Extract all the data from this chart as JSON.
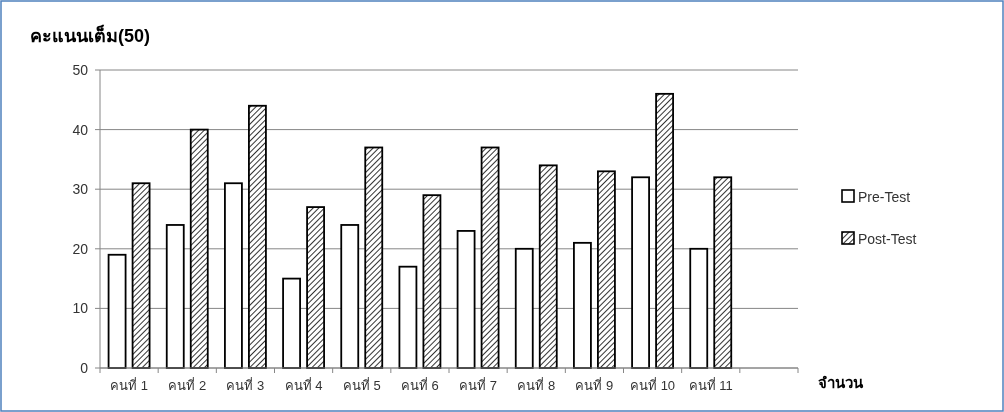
{
  "chart_data": {
    "type": "bar",
    "ylabel": "คะแนนเต็ม(50)",
    "xlabel": "จำนวน",
    "categories": [
      "คนที่ 1",
      "คนที่ 2",
      "คนที่ 3",
      "คนที่ 4",
      "คนที่ 5",
      "คนที่ 6",
      "คนที่ 7",
      "คนที่ 8",
      "คนที่ 9",
      "คนที่ 10",
      "คนที่ 11",
      null
    ],
    "series": [
      {
        "name": "Pre-Test",
        "color": "#ffffff",
        "values": [
          19,
          24,
          31,
          15,
          24,
          17,
          23,
          20,
          21,
          32,
          20,
          null
        ]
      },
      {
        "name": "Post-Test",
        "color": "#000000",
        "values": [
          31,
          40,
          44,
          27,
          37,
          29,
          37,
          34,
          33,
          46,
          32,
          null
        ]
      }
    ],
    "ylim": [
      0,
      50
    ],
    "yticks": [
      0,
      10,
      20,
      30,
      40,
      50
    ],
    "grid": "y",
    "legend": "right"
  }
}
